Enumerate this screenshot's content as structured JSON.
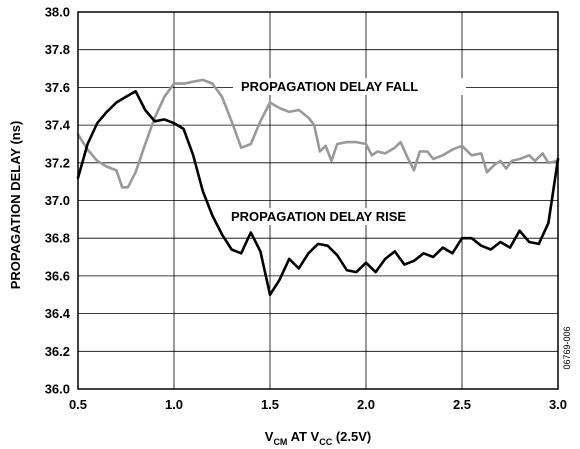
{
  "chart_data": {
    "type": "line",
    "xlabel": {
      "main1": "V",
      "sub1": "CM",
      "main2": " AT V",
      "sub2": "CC",
      "main3": " (2.5V)"
    },
    "ylabel": "PROPAGATION DELAY (ns)",
    "xlim": [
      0.5,
      3.0
    ],
    "ylim": [
      36.0,
      38.0
    ],
    "x_ticks": [
      "0.5",
      "1.0",
      "1.5",
      "2.0",
      "2.5",
      "3.0"
    ],
    "y_ticks": [
      "36.0",
      "36.2",
      "36.4",
      "36.6",
      "36.8",
      "37.0",
      "37.2",
      "37.4",
      "37.6",
      "37.8",
      "38.0"
    ],
    "grid": true,
    "figure_id": "06769-006",
    "series": [
      {
        "name": "PROPAGATION DELAY FALL",
        "color": "#999999",
        "points": [
          [
            0.5,
            37.35
          ],
          [
            0.55,
            37.27
          ],
          [
            0.6,
            37.21
          ],
          [
            0.65,
            37.18
          ],
          [
            0.7,
            37.16
          ],
          [
            0.73,
            37.07
          ],
          [
            0.76,
            37.07
          ],
          [
            0.8,
            37.15
          ],
          [
            0.85,
            37.3
          ],
          [
            0.9,
            37.44
          ],
          [
            0.95,
            37.55
          ],
          [
            1.0,
            37.62
          ],
          [
            1.05,
            37.62
          ],
          [
            1.1,
            37.63
          ],
          [
            1.15,
            37.64
          ],
          [
            1.2,
            37.62
          ],
          [
            1.25,
            37.55
          ],
          [
            1.3,
            37.42
          ],
          [
            1.35,
            37.28
          ],
          [
            1.4,
            37.3
          ],
          [
            1.45,
            37.42
          ],
          [
            1.5,
            37.52
          ],
          [
            1.55,
            37.49
          ],
          [
            1.6,
            37.47
          ],
          [
            1.65,
            37.48
          ],
          [
            1.7,
            37.44
          ],
          [
            1.73,
            37.4
          ],
          [
            1.76,
            37.26
          ],
          [
            1.79,
            37.29
          ],
          [
            1.82,
            37.21
          ],
          [
            1.85,
            37.3
          ],
          [
            1.9,
            37.31
          ],
          [
            1.95,
            37.31
          ],
          [
            2.0,
            37.3
          ],
          [
            2.03,
            37.24
          ],
          [
            2.06,
            37.26
          ],
          [
            2.1,
            37.25
          ],
          [
            2.15,
            37.28
          ],
          [
            2.18,
            37.31
          ],
          [
            2.22,
            37.22
          ],
          [
            2.25,
            37.16
          ],
          [
            2.28,
            37.26
          ],
          [
            2.32,
            37.26
          ],
          [
            2.35,
            37.22
          ],
          [
            2.4,
            37.24
          ],
          [
            2.45,
            37.27
          ],
          [
            2.5,
            37.29
          ],
          [
            2.55,
            37.24
          ],
          [
            2.6,
            37.25
          ],
          [
            2.63,
            37.15
          ],
          [
            2.67,
            37.19
          ],
          [
            2.7,
            37.21
          ],
          [
            2.73,
            37.17
          ],
          [
            2.76,
            37.21
          ],
          [
            2.8,
            37.22
          ],
          [
            2.85,
            37.24
          ],
          [
            2.88,
            37.21
          ],
          [
            2.92,
            37.25
          ],
          [
            2.95,
            37.2
          ],
          [
            3.0,
            37.21
          ]
        ]
      },
      {
        "name": "PROPAGATION DELAY RISE",
        "color": "#000000",
        "points": [
          [
            0.5,
            37.12
          ],
          [
            0.55,
            37.3
          ],
          [
            0.6,
            37.41
          ],
          [
            0.65,
            37.47
          ],
          [
            0.7,
            37.52
          ],
          [
            0.75,
            37.55
          ],
          [
            0.8,
            37.58
          ],
          [
            0.85,
            37.48
          ],
          [
            0.9,
            37.42
          ],
          [
            0.95,
            37.43
          ],
          [
            1.0,
            37.41
          ],
          [
            1.05,
            37.38
          ],
          [
            1.1,
            37.24
          ],
          [
            1.15,
            37.05
          ],
          [
            1.2,
            36.92
          ],
          [
            1.25,
            36.82
          ],
          [
            1.3,
            36.74
          ],
          [
            1.35,
            36.72
          ],
          [
            1.4,
            36.83
          ],
          [
            1.45,
            36.73
          ],
          [
            1.5,
            36.5
          ],
          [
            1.55,
            36.58
          ],
          [
            1.6,
            36.69
          ],
          [
            1.65,
            36.64
          ],
          [
            1.7,
            36.72
          ],
          [
            1.75,
            36.77
          ],
          [
            1.8,
            36.76
          ],
          [
            1.85,
            36.71
          ],
          [
            1.9,
            36.63
          ],
          [
            1.95,
            36.62
          ],
          [
            2.0,
            36.67
          ],
          [
            2.05,
            36.62
          ],
          [
            2.1,
            36.69
          ],
          [
            2.15,
            36.73
          ],
          [
            2.2,
            36.66
          ],
          [
            2.25,
            36.68
          ],
          [
            2.3,
            36.72
          ],
          [
            2.35,
            36.7
          ],
          [
            2.4,
            36.75
          ],
          [
            2.45,
            36.72
          ],
          [
            2.5,
            36.8
          ],
          [
            2.55,
            36.8
          ],
          [
            2.6,
            36.76
          ],
          [
            2.65,
            36.74
          ],
          [
            2.7,
            36.78
          ],
          [
            2.75,
            36.75
          ],
          [
            2.8,
            36.84
          ],
          [
            2.85,
            36.78
          ],
          [
            2.9,
            36.77
          ],
          [
            2.95,
            36.88
          ],
          [
            3.0,
            37.22
          ]
        ]
      }
    ],
    "annotations": [
      {
        "text": "PROPAGATION DELAY FALL",
        "series": 0
      },
      {
        "text": "PROPAGATION DELAY RISE",
        "series": 1
      }
    ]
  }
}
